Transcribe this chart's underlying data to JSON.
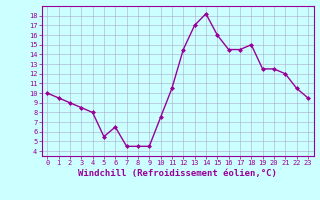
{
  "x": [
    0,
    1,
    2,
    3,
    4,
    5,
    6,
    7,
    8,
    9,
    10,
    11,
    12,
    13,
    14,
    15,
    16,
    17,
    18,
    19,
    20,
    21,
    22,
    23
  ],
  "y": [
    10,
    9.5,
    9,
    8.5,
    8,
    5.5,
    6.5,
    4.5,
    4.5,
    4.5,
    7.5,
    10.5,
    14.5,
    17,
    18.2,
    16,
    14.5,
    14.5,
    15,
    12.5,
    12.5,
    12,
    10.5,
    9.5
  ],
  "line_color": "#990099",
  "marker": "D",
  "marker_size": 2,
  "bg_color": "#ccffff",
  "grid_color": "#aaaacc",
  "axis_color": "#990099",
  "tick_color": "#990099",
  "xlabel": "Windchill (Refroidissement éolien,°C)",
  "xlabel_fontsize": 6.5,
  "xtick_labels": [
    "0",
    "1",
    "2",
    "3",
    "4",
    "5",
    "6",
    "7",
    "8",
    "9",
    "10",
    "11",
    "12",
    "13",
    "14",
    "15",
    "16",
    "17",
    "18",
    "19",
    "20",
    "21",
    "22",
    "23"
  ],
  "ytick_labels": [
    "4",
    "5",
    "6",
    "7",
    "8",
    "9",
    "10",
    "11",
    "12",
    "13",
    "14",
    "15",
    "16",
    "17",
    "18"
  ],
  "xlim": [
    -0.5,
    23.5
  ],
  "ylim": [
    3.5,
    19.0
  ],
  "yticks": [
    4,
    5,
    6,
    7,
    8,
    9,
    10,
    11,
    12,
    13,
    14,
    15,
    16,
    17,
    18
  ],
  "xticks": [
    0,
    1,
    2,
    3,
    4,
    5,
    6,
    7,
    8,
    9,
    10,
    11,
    12,
    13,
    14,
    15,
    16,
    17,
    18,
    19,
    20,
    21,
    22,
    23
  ],
  "line_width": 1.0
}
